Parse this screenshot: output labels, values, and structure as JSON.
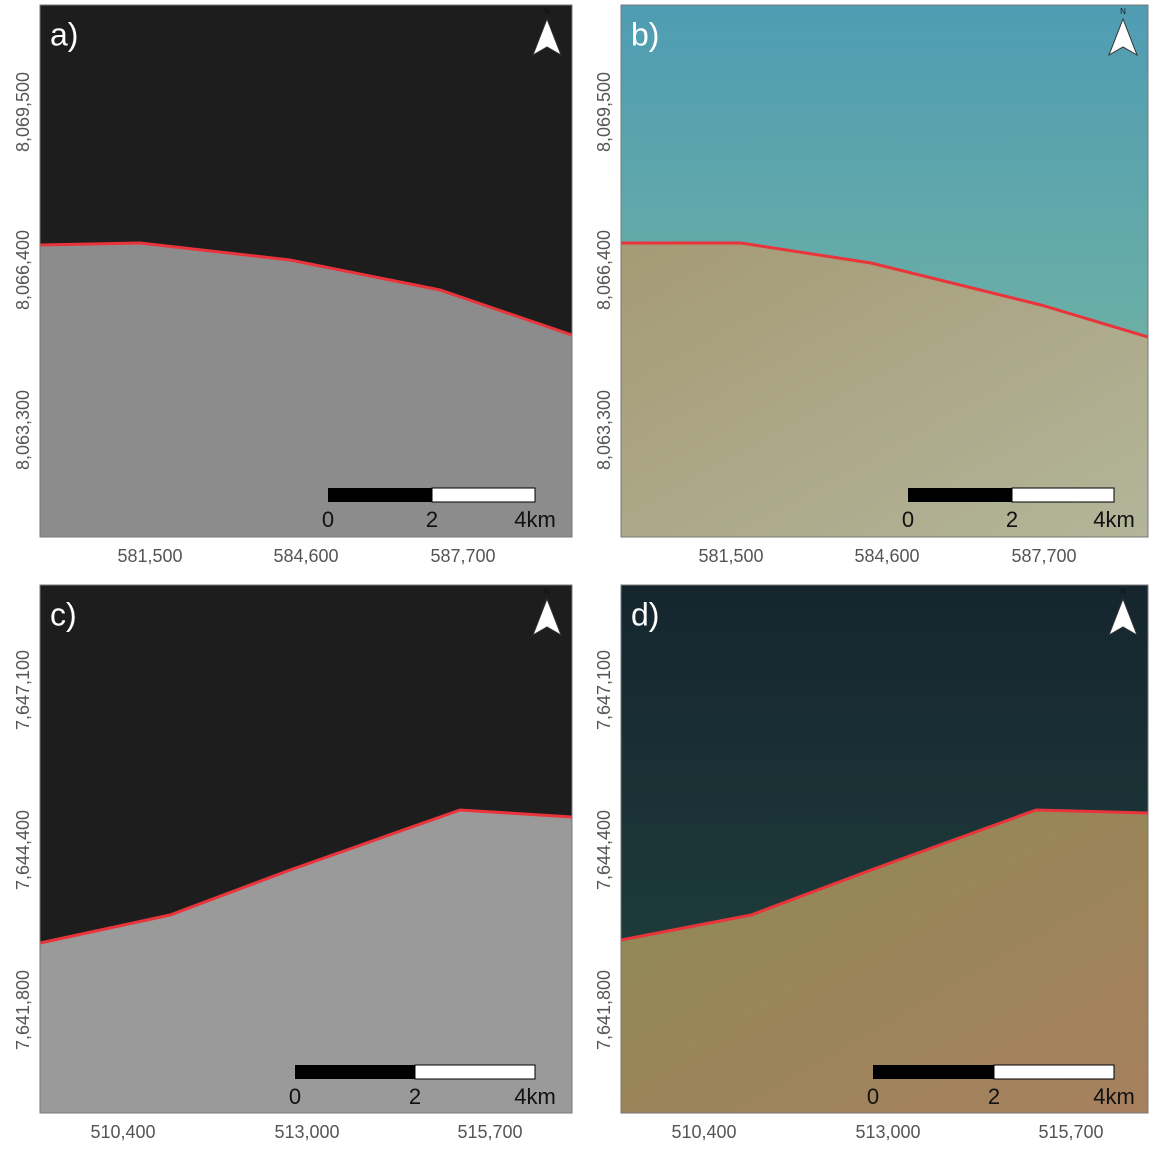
{
  "panels": [
    {
      "label": "a)",
      "north": "N",
      "x_ticks": [
        "581,500",
        "584,600",
        "587,700"
      ],
      "y_ticks": [
        "8,069,500",
        "8,066,400",
        "8,063,300"
      ],
      "scale_labels": [
        "0",
        "2",
        "4km"
      ]
    },
    {
      "label": "b)",
      "north": "N",
      "x_ticks": [
        "581,500",
        "584,600",
        "587,700"
      ],
      "y_ticks": [
        "8,069,500",
        "8,066,400",
        "8,063,300"
      ],
      "scale_labels": [
        "0",
        "2",
        "4km"
      ]
    },
    {
      "label": "c)",
      "north": "N",
      "x_ticks": [
        "510,400",
        "513,000",
        "515,700"
      ],
      "y_ticks": [
        "7,647,100",
        "7,644,400",
        "7,641,800"
      ],
      "scale_labels": [
        "0",
        "2",
        "4km"
      ]
    },
    {
      "label": "d)",
      "north": "N",
      "x_ticks": [
        "510,400",
        "513,000",
        "515,700"
      ],
      "y_ticks": [
        "7,647,100",
        "7,644,400",
        "7,641,800"
      ],
      "scale_labels": [
        "0",
        "2",
        "4km"
      ]
    }
  ]
}
